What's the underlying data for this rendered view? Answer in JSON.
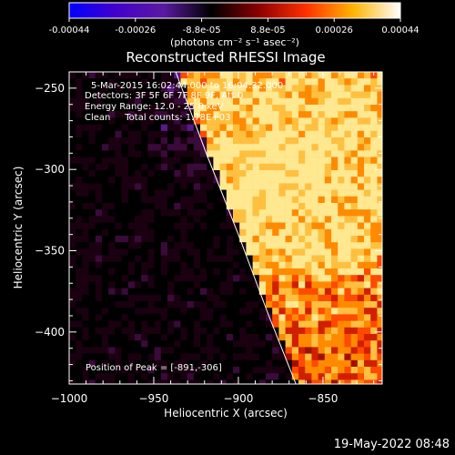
{
  "colorbar": {
    "ticks": [
      "-0.00044",
      "-0.00026",
      "-8.8e-05",
      "8.8e-05",
      "0.00026",
      "0.00044"
    ],
    "unit_label": "(photons cm⁻² s⁻¹ asec⁻²)",
    "colors": [
      "#0000ff",
      "#4400cc",
      "#5a1aa0",
      "#000000",
      "#8a0000",
      "#ff3000",
      "#ffb400",
      "#ffffff"
    ]
  },
  "image": {
    "title": "Reconstructed RHESSI Image",
    "info_lines": [
      "5-Mar-2015 16:02:44.000 to 16:04:32.000",
      "Detectors: 3F 5F 6F 7F 8F 9F, Att 0",
      "Energy Range: 12.0 - 25.0 keV",
      "Clean     Total counts: 1.78E+03"
    ],
    "peak_label": "Position of Peak = [-891,-306]",
    "peak": {
      "x": -891,
      "y": -306
    }
  },
  "axes": {
    "xlabel": "Heliocentric X (arcsec)",
    "ylabel": "Heliocentric Y (arcsec)",
    "xlim": [
      -1000,
      -815
    ],
    "ylim": [
      -432,
      -240
    ],
    "xticks": [
      -1000,
      -950,
      -900,
      -850
    ],
    "yticks": [
      -250,
      -300,
      -350,
      -400
    ]
  },
  "limb": {
    "points": [
      [
        -937,
        -240
      ],
      [
        -919,
        -290
      ],
      [
        -900,
        -340
      ],
      [
        -882,
        -390
      ],
      [
        -866,
        -432
      ]
    ]
  },
  "footer": {
    "timestamp": "19-May-2022 08:48"
  }
}
